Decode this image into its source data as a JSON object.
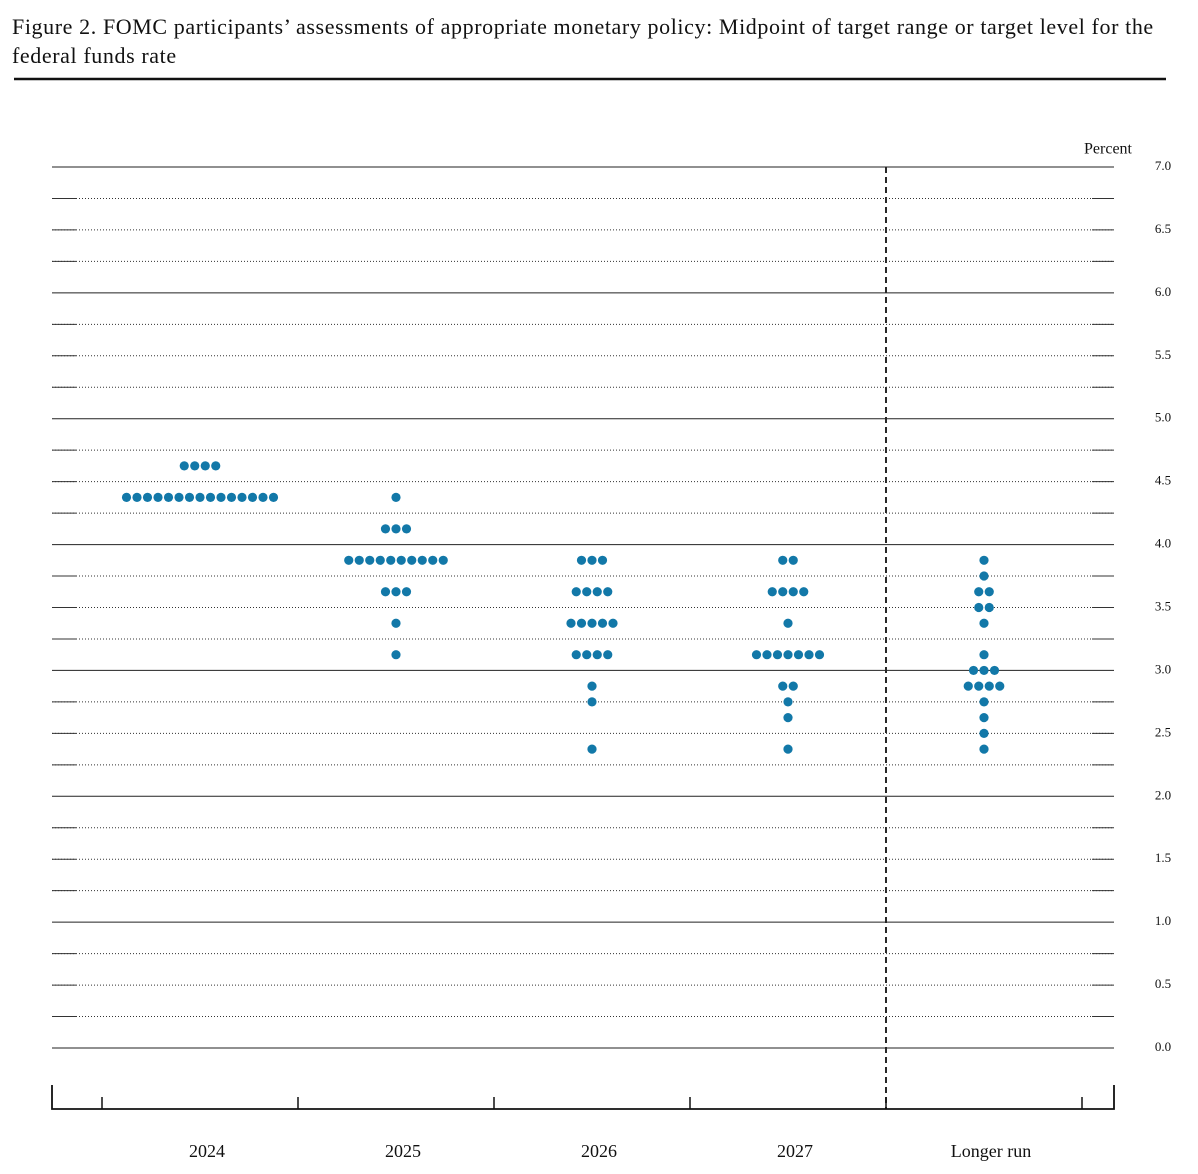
{
  "chart_data": {
    "type": "dot",
    "title": "Figure 2.  FOMC participants’ assessments of appropriate monetary policy:  Midpoint of target range or target level for the federal funds rate",
    "y_label": "Percent",
    "color": "#1278a8",
    "categories": [
      "2024",
      "2025",
      "2026",
      "2027",
      "Longer run"
    ],
    "columns": [
      {
        "levels": [
          4.625,
          4.375
        ],
        "counts": [
          4,
          15
        ]
      },
      {
        "levels": [
          4.375,
          4.125,
          3.875,
          3.625,
          3.375,
          3.125
        ],
        "counts": [
          1,
          3,
          10,
          3,
          1,
          1
        ]
      },
      {
        "levels": [
          3.875,
          3.625,
          3.375,
          3.125,
          2.875,
          2.75,
          2.375
        ],
        "counts": [
          3,
          4,
          5,
          4,
          1,
          1,
          1
        ]
      },
      {
        "levels": [
          3.875,
          3.625,
          3.375,
          3.125,
          2.875,
          2.75,
          2.625,
          2.375
        ],
        "counts": [
          2,
          4,
          1,
          7,
          2,
          1,
          1,
          1
        ]
      },
      {
        "levels": [
          3.875,
          3.75,
          3.625,
          3.5,
          3.375,
          3.125,
          3.0,
          2.875,
          2.75,
          2.625,
          2.5,
          2.375
        ],
        "counts": [
          1,
          1,
          2,
          2,
          1,
          1,
          3,
          4,
          1,
          1,
          1,
          1
        ]
      }
    ],
    "ylim": [
      0,
      7
    ],
    "yticks": [
      {
        "value": 0,
        "label": "0.0"
      },
      0.5,
      {
        "value": 1,
        "label": "1.0"
      },
      1.5,
      {
        "value": 2,
        "label": "2.0"
      },
      2.5,
      {
        "value": 3,
        "label": "3.0"
      },
      3.5,
      {
        "value": 4,
        "label": "4.0"
      },
      4.5,
      {
        "value": 5,
        "label": "5.0"
      },
      5.5,
      {
        "value": 6,
        "label": "6.0"
      },
      6.5,
      {
        "value": 7,
        "label": "7.0"
      }
    ],
    "yminorticks": [
      0.25,
      0.75,
      1.25,
      1.75,
      2.25,
      2.75,
      3.25,
      3.75,
      4.25,
      4.75,
      5.25,
      5.75,
      6.25,
      6.75
    ],
    "grid": true
  }
}
